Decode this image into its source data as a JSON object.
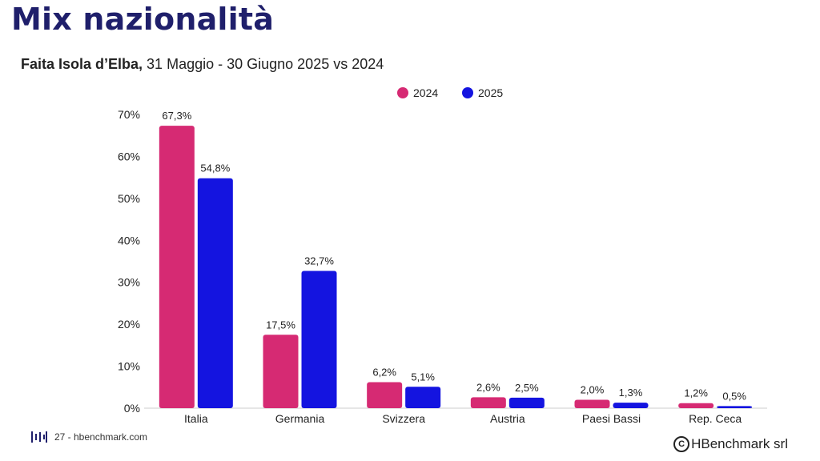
{
  "title": "Mix nazionalità",
  "subtitle": {
    "bold": "Faita Isola d’Elba,",
    "rest": " 31 Maggio - 30 Giugno 2025 vs 2024"
  },
  "footer": {
    "page": "27 - hbenchmark.com",
    "copyright": "HBenchmark srl",
    "copyright_symbol": "C"
  },
  "chart_data": {
    "type": "bar",
    "categories": [
      "Italia",
      "Germania",
      "Svizzera",
      "Austria",
      "Paesi Bassi",
      "Rep. Ceca"
    ],
    "series": [
      {
        "name": "2024",
        "color": "#d62a73",
        "values": [
          67.3,
          17.5,
          6.2,
          2.6,
          2.0,
          1.2
        ],
        "labels": [
          "67,3%",
          "17,5%",
          "6,2%",
          "2,6%",
          "2,0%",
          "1,2%"
        ]
      },
      {
        "name": "2025",
        "color": "#1414e0",
        "values": [
          54.8,
          32.7,
          5.1,
          2.5,
          1.3,
          0.5
        ],
        "labels": [
          "54,8%",
          "32,7%",
          "5,1%",
          "2,5%",
          "1,3%",
          "0,5%"
        ]
      }
    ],
    "yticks": [
      0,
      10,
      20,
      30,
      40,
      50,
      60,
      70
    ],
    "ytick_labels": [
      "0%",
      "10%",
      "20%",
      "30%",
      "40%",
      "50%",
      "60%",
      "70%"
    ],
    "ylim": [
      0,
      70
    ],
    "grid": false,
    "legend": "top-right"
  }
}
